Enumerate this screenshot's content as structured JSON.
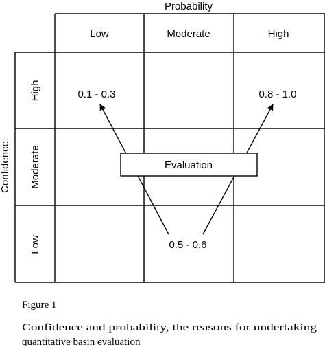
{
  "axes": {
    "top_title": "Probability",
    "left_title": "Confidence"
  },
  "columns": [
    "Low",
    "Moderate",
    "High"
  ],
  "rows": [
    "High",
    "Moderate",
    "Low"
  ],
  "cells": {
    "high_low": "0.1 - 0.3",
    "high_high": "0.8 - 1.0",
    "low_moderate": "0.5 - 0.6"
  },
  "evaluation_box": "Evaluation",
  "figure": {
    "label": "Figure 1",
    "caption_line1": "Confidence and probability, the reasons for undertaking",
    "caption_line2": "quantitative basin evaluation"
  }
}
